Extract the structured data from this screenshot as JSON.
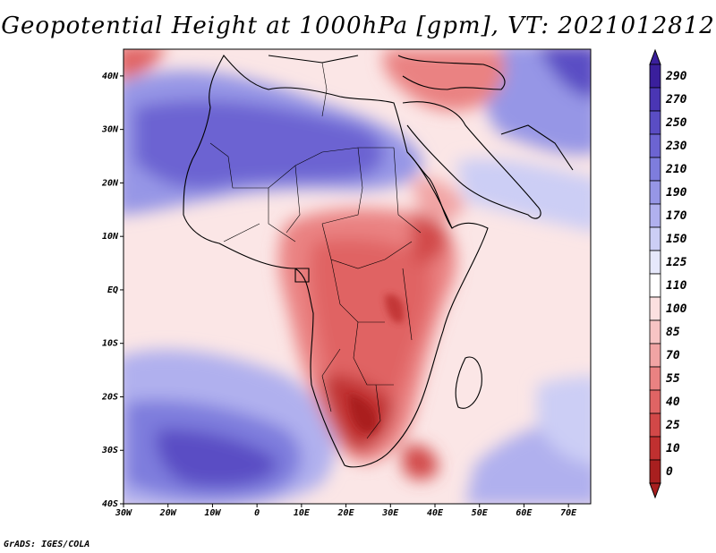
{
  "title": "Geopotential Height at 1000hPa [gpm], VT: 2021012812",
  "credit": "GrADS: IGES/COLA",
  "map": {
    "region": "Africa",
    "variable": "Geopotential Height",
    "level": "1000hPa",
    "units": "gpm",
    "valid_time": "2021012812",
    "lon_range": [
      -30,
      75
    ],
    "lat_range": [
      -40,
      45
    ],
    "lon_ticks": [
      "30W",
      "20W",
      "10W",
      "0",
      "10E",
      "20E",
      "30E",
      "40E",
      "50E",
      "60E",
      "70E"
    ],
    "lat_ticks": [
      "40N",
      "30N",
      "20N",
      "10N",
      "EQ",
      "10S",
      "20S",
      "30S",
      "40S"
    ]
  },
  "colorbar": {
    "labels": [
      "290",
      "270",
      "250",
      "230",
      "210",
      "190",
      "170",
      "150",
      "125",
      "110",
      "100",
      "85",
      "70",
      "55",
      "40",
      "25",
      "10",
      "0"
    ],
    "colors": [
      "#3a1f9c",
      "#4a36b4",
      "#5a4dc4",
      "#6c64d2",
      "#7e7ddd",
      "#9696e6",
      "#b0b0ee",
      "#cccef5",
      "#e6e8fb",
      "#ffffff",
      "#fbe0e0",
      "#f7c4c4",
      "#f1a4a4",
      "#ea8282",
      "#e06464",
      "#d24848",
      "#c03030",
      "#a81f1f"
    ]
  }
}
